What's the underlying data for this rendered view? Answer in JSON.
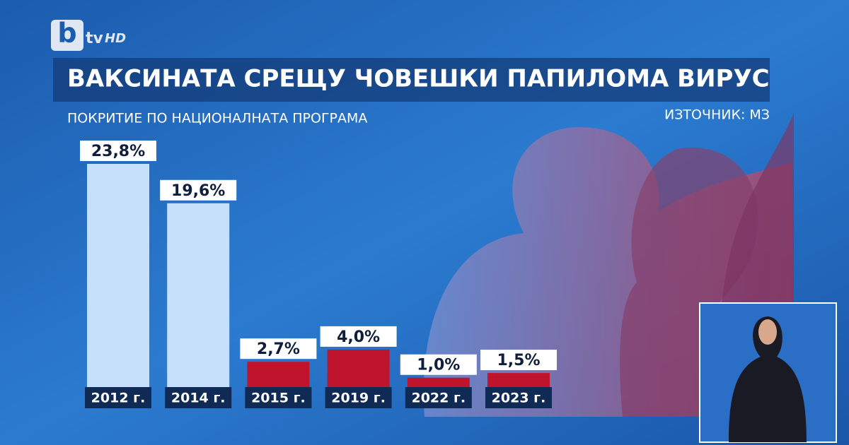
{
  "logo": {
    "mark": "b",
    "text": "tv",
    "suffix": "HD"
  },
  "chart_data": {
    "type": "bar",
    "title": "ВАКСИНАТА СРЕЩУ ЧОВЕШКИ ПАПИЛОМА ВИРУС",
    "subtitle": "ПОКРИТИЕ ПО НАЦИОНАЛНАТА ПРОГРАМА",
    "source": "ИЗТОЧНИК: МЗ",
    "categories": [
      "2012 г.",
      "2014 г.",
      "2015 г.",
      "2019 г.",
      "2022 г.",
      "2023 г."
    ],
    "values": [
      23.8,
      19.6,
      2.7,
      4.0,
      1.0,
      1.5
    ],
    "value_labels": [
      "23,8%",
      "19,6%",
      "2,7%",
      "4,0%",
      "1,0%",
      "1,5%"
    ],
    "colors": [
      "#c6dffb",
      "#c6dffb",
      "#c0142c",
      "#c0142c",
      "#c0142c",
      "#c0142c"
    ]
  }
}
